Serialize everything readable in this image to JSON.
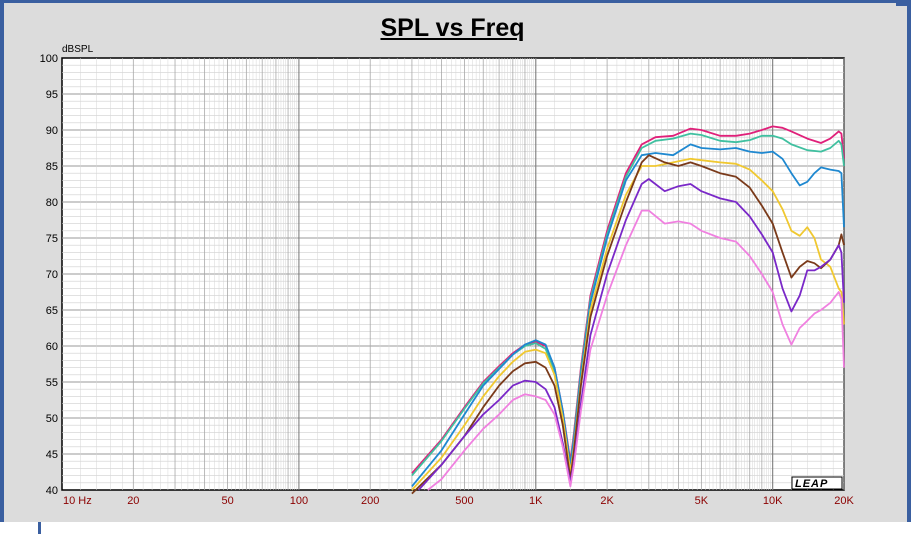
{
  "chart_data": {
    "type": "line",
    "title": "SPL vs Freq",
    "ylabel": "dBSPL",
    "xlabel": "",
    "xscale": "log",
    "xlim": [
      10,
      20000
    ],
    "ylim": [
      40,
      100
    ],
    "grid": true,
    "y_ticks": [
      100,
      95,
      90,
      85,
      80,
      75,
      70,
      65,
      60,
      55,
      50,
      45,
      40
    ],
    "x_ticks": [
      {
        "value": 10,
        "label": "10 Hz"
      },
      {
        "value": 20,
        "label": "20"
      },
      {
        "value": 50,
        "label": "50"
      },
      {
        "value": 100,
        "label": "100"
      },
      {
        "value": 200,
        "label": "200"
      },
      {
        "value": 500,
        "label": "500"
      },
      {
        "value": 1000,
        "label": "1K"
      },
      {
        "value": 2000,
        "label": "2K"
      },
      {
        "value": 5000,
        "label": "5K"
      },
      {
        "value": 10000,
        "label": "10K"
      },
      {
        "value": 20000,
        "label": "20K"
      }
    ],
    "series": [
      {
        "color": "#e0207a",
        "points": [
          [
            300,
            42.3
          ],
          [
            400,
            47
          ],
          [
            500,
            51.5
          ],
          [
            600,
            55
          ],
          [
            700,
            57.2
          ],
          [
            800,
            59
          ],
          [
            900,
            60.2
          ],
          [
            1000,
            60.6
          ],
          [
            1100,
            60
          ],
          [
            1200,
            57
          ],
          [
            1300,
            51
          ],
          [
            1400,
            44
          ],
          [
            1450,
            48
          ],
          [
            1550,
            57
          ],
          [
            1700,
            67
          ],
          [
            2000,
            76
          ],
          [
            2400,
            84
          ],
          [
            2800,
            88
          ],
          [
            3200,
            89
          ],
          [
            3800,
            89.2
          ],
          [
            4500,
            90.2
          ],
          [
            5000,
            90
          ],
          [
            6000,
            89.2
          ],
          [
            7000,
            89.2
          ],
          [
            8000,
            89.5
          ],
          [
            9000,
            90
          ],
          [
            10000,
            90.5
          ],
          [
            11000,
            90.3
          ],
          [
            12000,
            89.8
          ],
          [
            14000,
            88.8
          ],
          [
            16000,
            88.2
          ],
          [
            17500,
            88.8
          ],
          [
            19000,
            89.8
          ],
          [
            19500,
            89.5
          ],
          [
            20000,
            86
          ]
        ]
      },
      {
        "color": "#40c0a0",
        "points": [
          [
            300,
            42
          ],
          [
            400,
            46.8
          ],
          [
            500,
            51.3
          ],
          [
            600,
            54.8
          ],
          [
            700,
            57
          ],
          [
            800,
            58.8
          ],
          [
            900,
            60
          ],
          [
            1000,
            60.4
          ],
          [
            1100,
            59.6
          ],
          [
            1200,
            56.5
          ],
          [
            1300,
            50.5
          ],
          [
            1400,
            43.5
          ],
          [
            1450,
            47.5
          ],
          [
            1550,
            56.5
          ],
          [
            1700,
            66.5
          ],
          [
            2000,
            75.5
          ],
          [
            2400,
            83.5
          ],
          [
            2800,
            87.5
          ],
          [
            3200,
            88.5
          ],
          [
            3800,
            88.8
          ],
          [
            4500,
            89.5
          ],
          [
            5000,
            89.3
          ],
          [
            6000,
            88.5
          ],
          [
            7000,
            88.3
          ],
          [
            8000,
            88.6
          ],
          [
            9000,
            89.2
          ],
          [
            10000,
            89.2
          ],
          [
            11000,
            88.8
          ],
          [
            12000,
            88
          ],
          [
            14000,
            87.2
          ],
          [
            16000,
            87
          ],
          [
            17500,
            87.5
          ],
          [
            19000,
            88.5
          ],
          [
            19500,
            88
          ],
          [
            20000,
            85
          ]
        ]
      },
      {
        "color": "#1e88d0",
        "points": [
          [
            300,
            40.5
          ],
          [
            400,
            45.5
          ],
          [
            500,
            50.5
          ],
          [
            600,
            54.5
          ],
          [
            700,
            56.8
          ],
          [
            800,
            58.8
          ],
          [
            900,
            60.2
          ],
          [
            1000,
            60.8
          ],
          [
            1100,
            60.2
          ],
          [
            1200,
            57
          ],
          [
            1300,
            51
          ],
          [
            1400,
            43.5
          ],
          [
            1450,
            47
          ],
          [
            1550,
            56
          ],
          [
            1700,
            66
          ],
          [
            2000,
            75
          ],
          [
            2400,
            83
          ],
          [
            2800,
            86.5
          ],
          [
            3200,
            86.8
          ],
          [
            3800,
            86.5
          ],
          [
            4500,
            88
          ],
          [
            5000,
            87.5
          ],
          [
            6000,
            87.3
          ],
          [
            7000,
            87.5
          ],
          [
            8000,
            87
          ],
          [
            9000,
            86.8
          ],
          [
            10000,
            87
          ],
          [
            11000,
            86
          ],
          [
            12000,
            84
          ],
          [
            13000,
            82.3
          ],
          [
            14000,
            82.8
          ],
          [
            15000,
            84
          ],
          [
            16000,
            84.8
          ],
          [
            17500,
            84.5
          ],
          [
            19000,
            84.3
          ],
          [
            19500,
            84
          ],
          [
            20000,
            76.5
          ]
        ]
      },
      {
        "color": "#f0c830",
        "points": [
          [
            300,
            40
          ],
          [
            400,
            44.5
          ],
          [
            500,
            49
          ],
          [
            600,
            53
          ],
          [
            700,
            55.8
          ],
          [
            800,
            57.8
          ],
          [
            900,
            59.2
          ],
          [
            1000,
            59.5
          ],
          [
            1100,
            59
          ],
          [
            1200,
            56
          ],
          [
            1300,
            50
          ],
          [
            1400,
            42.5
          ],
          [
            1450,
            46
          ],
          [
            1550,
            55
          ],
          [
            1700,
            65
          ],
          [
            2000,
            73.5
          ],
          [
            2400,
            81
          ],
          [
            2800,
            85
          ],
          [
            3200,
            85
          ],
          [
            3800,
            85.5
          ],
          [
            4500,
            86
          ],
          [
            5000,
            85.8
          ],
          [
            6000,
            85.5
          ],
          [
            7000,
            85.3
          ],
          [
            8000,
            84.5
          ],
          [
            9000,
            83
          ],
          [
            10000,
            81.5
          ],
          [
            11000,
            79
          ],
          [
            12000,
            76
          ],
          [
            13000,
            75.3
          ],
          [
            14000,
            76.5
          ],
          [
            15000,
            75
          ],
          [
            16000,
            72
          ],
          [
            17500,
            71
          ],
          [
            19000,
            68
          ],
          [
            19500,
            67.5
          ],
          [
            20000,
            63
          ]
        ]
      },
      {
        "color": "#7a3a1a",
        "points": [
          [
            300,
            39.5
          ],
          [
            400,
            43.5
          ],
          [
            500,
            47.5
          ],
          [
            600,
            51.5
          ],
          [
            700,
            54.5
          ],
          [
            800,
            56.5
          ],
          [
            900,
            57.6
          ],
          [
            1000,
            57.8
          ],
          [
            1100,
            57
          ],
          [
            1200,
            54.5
          ],
          [
            1300,
            49
          ],
          [
            1400,
            41.5
          ],
          [
            1450,
            45.5
          ],
          [
            1550,
            54.5
          ],
          [
            1700,
            64
          ],
          [
            2000,
            72.5
          ],
          [
            2400,
            80
          ],
          [
            2800,
            85.5
          ],
          [
            3000,
            86.5
          ],
          [
            3500,
            85.5
          ],
          [
            4000,
            85
          ],
          [
            4500,
            85.5
          ],
          [
            5000,
            85
          ],
          [
            6000,
            84
          ],
          [
            7000,
            83.5
          ],
          [
            8000,
            82
          ],
          [
            9000,
            79.5
          ],
          [
            10000,
            77
          ],
          [
            11000,
            73
          ],
          [
            12000,
            69.5
          ],
          [
            13000,
            71
          ],
          [
            14000,
            71.8
          ],
          [
            15000,
            71.5
          ],
          [
            16000,
            70.8
          ],
          [
            17500,
            72
          ],
          [
            19000,
            74
          ],
          [
            19500,
            75.5
          ],
          [
            20000,
            74
          ]
        ]
      },
      {
        "color": "#7a28c8",
        "points": [
          [
            320,
            40
          ],
          [
            400,
            43.5
          ],
          [
            500,
            47.5
          ],
          [
            600,
            50.5
          ],
          [
            700,
            52.5
          ],
          [
            800,
            54.5
          ],
          [
            900,
            55.2
          ],
          [
            1000,
            55
          ],
          [
            1100,
            54
          ],
          [
            1200,
            51.5
          ],
          [
            1300,
            46.5
          ],
          [
            1400,
            41
          ],
          [
            1450,
            44
          ],
          [
            1550,
            52
          ],
          [
            1700,
            61.5
          ],
          [
            2000,
            70
          ],
          [
            2400,
            77.5
          ],
          [
            2800,
            82.5
          ],
          [
            3000,
            83.2
          ],
          [
            3500,
            81.5
          ],
          [
            4000,
            82.2
          ],
          [
            4500,
            82.5
          ],
          [
            5000,
            81.5
          ],
          [
            6000,
            80.5
          ],
          [
            7000,
            80
          ],
          [
            8000,
            78
          ],
          [
            9000,
            75.5
          ],
          [
            10000,
            73
          ],
          [
            11000,
            68
          ],
          [
            12000,
            64.8
          ],
          [
            13000,
            67
          ],
          [
            14000,
            70.5
          ],
          [
            15000,
            70.5
          ],
          [
            16000,
            71
          ],
          [
            17500,
            72
          ],
          [
            19000,
            74
          ],
          [
            19500,
            73
          ],
          [
            20000,
            66
          ]
        ]
      },
      {
        "color": "#f080e0",
        "points": [
          [
            350,
            40
          ],
          [
            400,
            41.5
          ],
          [
            500,
            45.5
          ],
          [
            600,
            48.5
          ],
          [
            700,
            50.5
          ],
          [
            800,
            52.5
          ],
          [
            900,
            53.3
          ],
          [
            1000,
            53
          ],
          [
            1100,
            52.5
          ],
          [
            1200,
            50.5
          ],
          [
            1300,
            46
          ],
          [
            1400,
            40.5
          ],
          [
            1450,
            43.5
          ],
          [
            1550,
            51
          ],
          [
            1700,
            59.5
          ],
          [
            2000,
            67
          ],
          [
            2400,
            74
          ],
          [
            2800,
            78.8
          ],
          [
            3000,
            78.8
          ],
          [
            3500,
            77
          ],
          [
            4000,
            77.3
          ],
          [
            4500,
            77
          ],
          [
            5000,
            76
          ],
          [
            6000,
            75
          ],
          [
            7000,
            74.5
          ],
          [
            8000,
            72.5
          ],
          [
            9000,
            70
          ],
          [
            10000,
            67.5
          ],
          [
            11000,
            63
          ],
          [
            12000,
            60.2
          ],
          [
            13000,
            62.5
          ],
          [
            14000,
            63.5
          ],
          [
            15000,
            64.5
          ],
          [
            16000,
            65
          ],
          [
            17500,
            66
          ],
          [
            19000,
            67.5
          ],
          [
            19500,
            66.5
          ],
          [
            20000,
            57
          ]
        ]
      }
    ]
  }
}
